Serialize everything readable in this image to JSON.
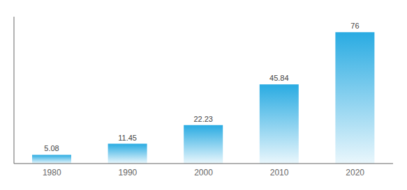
{
  "chart_data": {
    "type": "bar",
    "categories": [
      "1980",
      "1990",
      "2000",
      "2010",
      "2020"
    ],
    "values": [
      5.08,
      11.45,
      22.23,
      45.84,
      76
    ],
    "color": "#29abe2",
    "ylim": [
      0,
      85
    ],
    "grid": false,
    "data_labels": true,
    "tick_labels": "x"
  }
}
